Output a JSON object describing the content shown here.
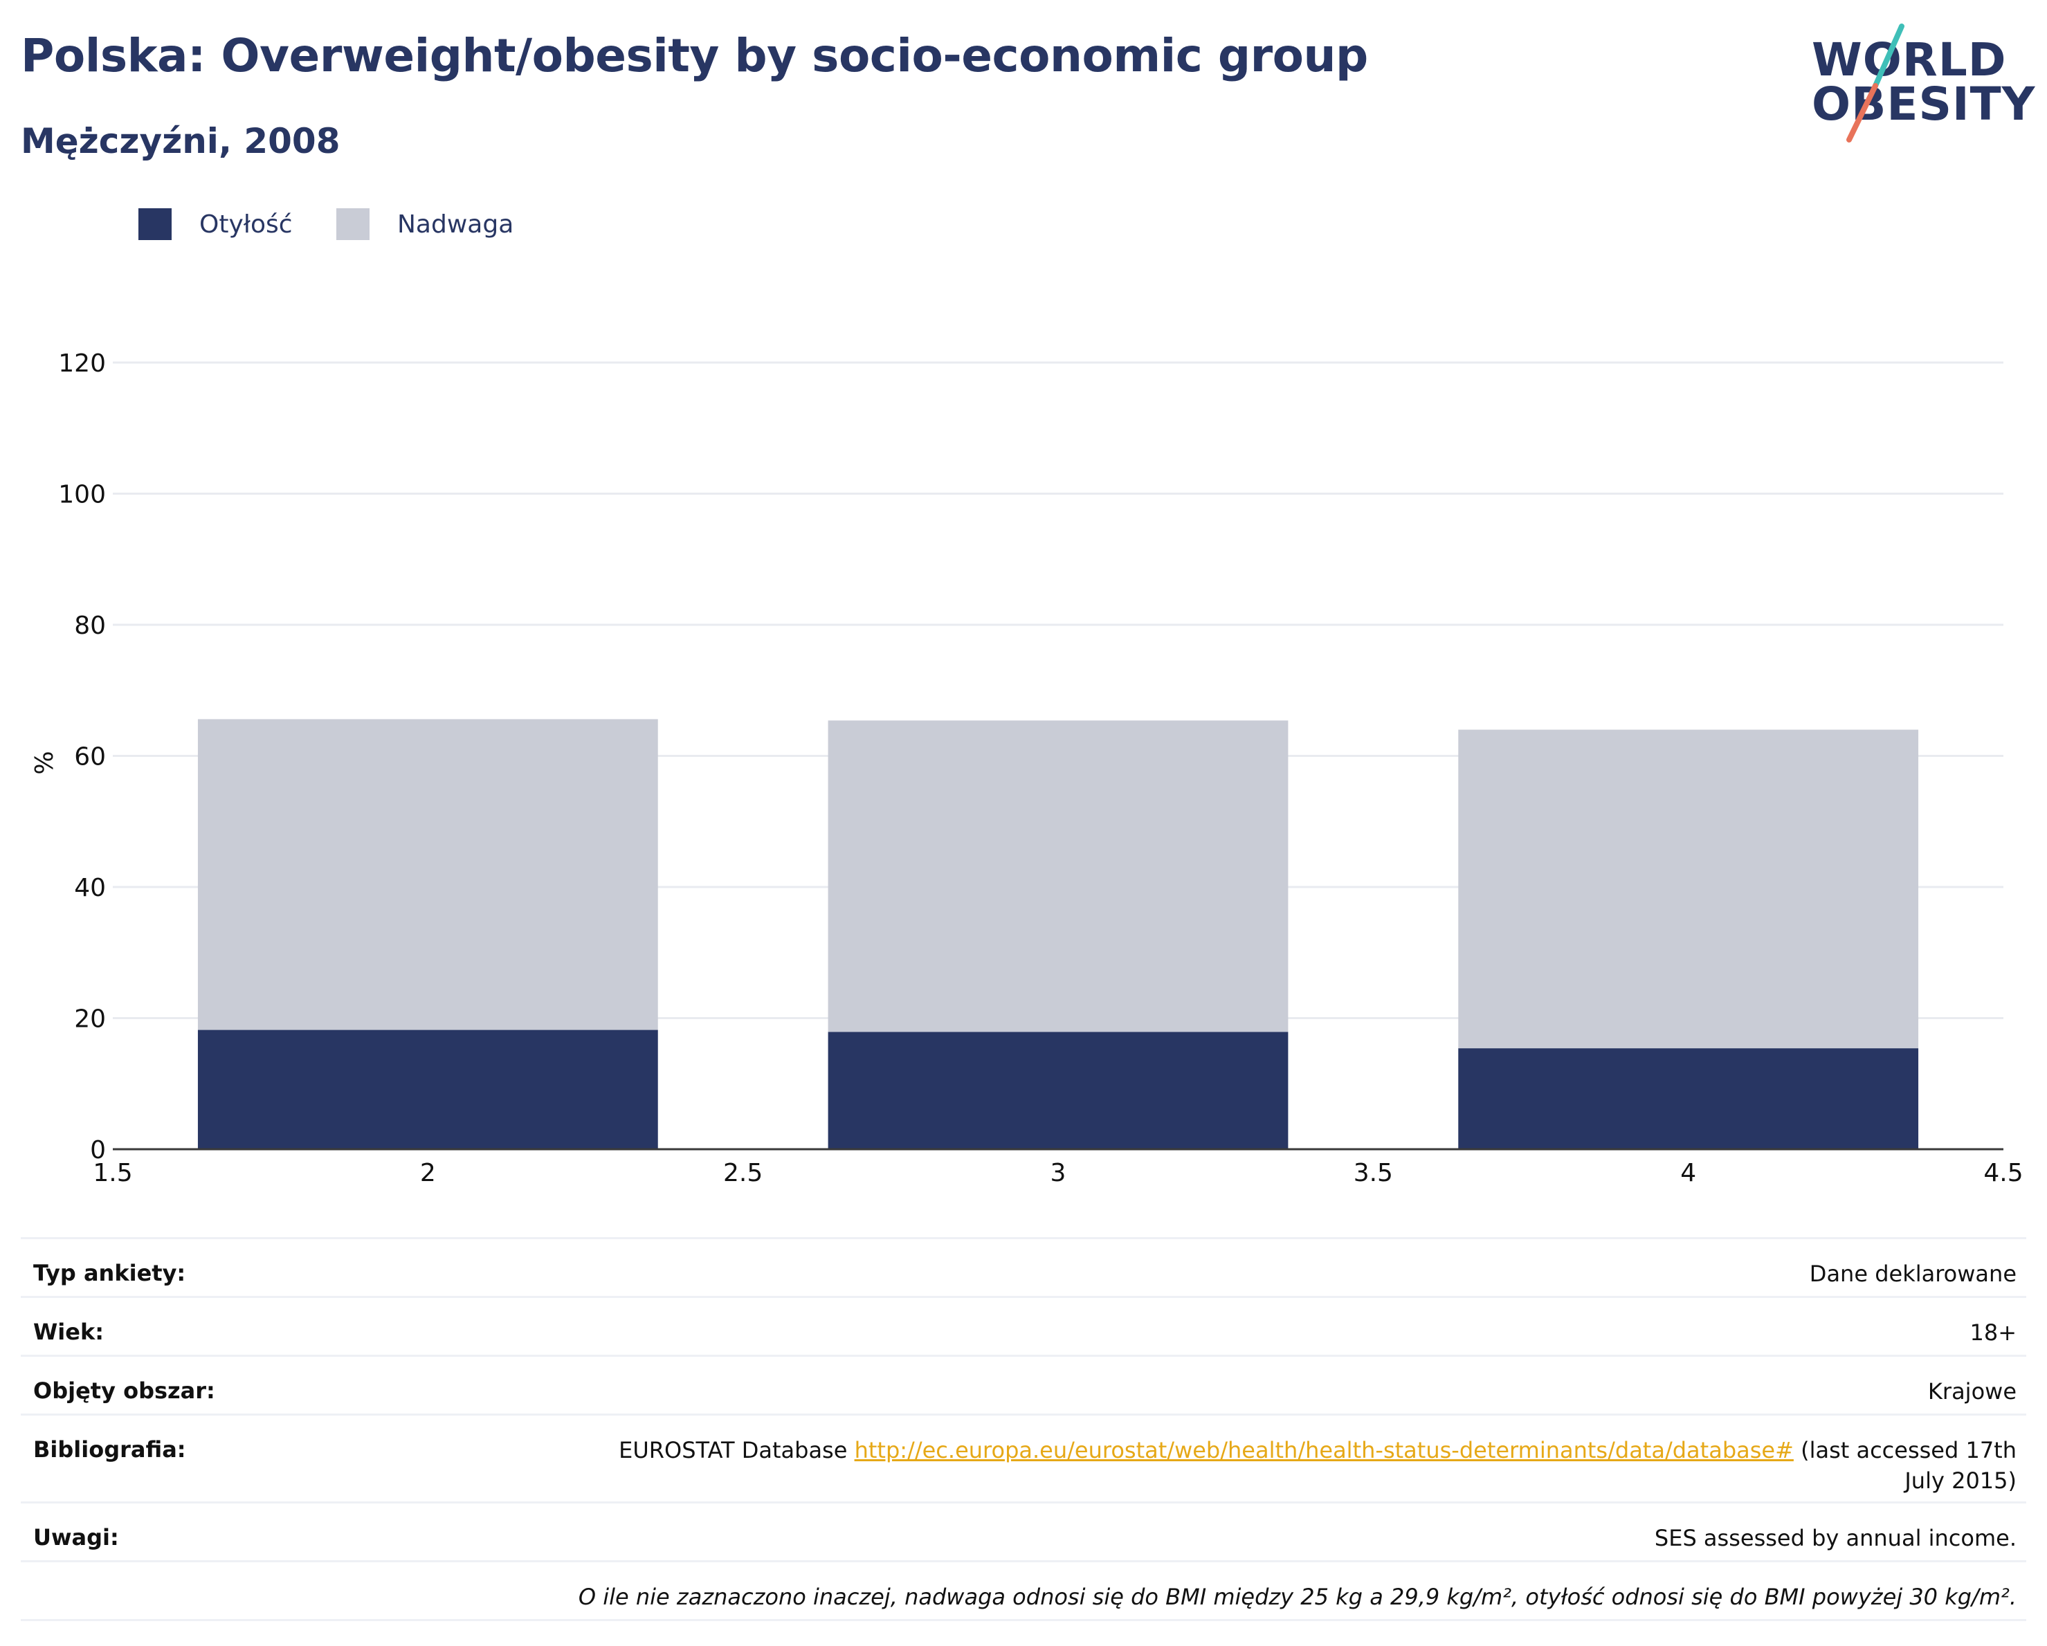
{
  "header": {
    "title": "Polska: Overweight/obesity by socio-economic group",
    "subtitle": "Mężczyźni, 2008"
  },
  "logo": {
    "line1": "WORLD",
    "line2": "OBESITY"
  },
  "legend": [
    {
      "label": "Otyłość",
      "color": "#283663"
    },
    {
      "label": "Nadwaga",
      "color": "#c9ccd6"
    }
  ],
  "chart_data": {
    "type": "bar",
    "stacked": true,
    "x": [
      2,
      3,
      4
    ],
    "xlim": [
      1.5,
      4.5
    ],
    "x_ticks": [
      "1.5",
      "2",
      "2.5",
      "3",
      "3.5",
      "4",
      "4.5"
    ],
    "ylim": [
      0,
      120
    ],
    "y_ticks": [
      "0",
      "20",
      "40",
      "60",
      "80",
      "100",
      "120"
    ],
    "ylabel": "%",
    "grid": true,
    "legend_position": "top-left",
    "series": [
      {
        "name": "Otyłość",
        "values": [
          18.2,
          17.9,
          15.4
        ],
        "color": "#283663"
      },
      {
        "name": "Nadwaga",
        "values": [
          47.4,
          47.5,
          48.6
        ],
        "color": "#c9ccd6"
      }
    ]
  },
  "info": {
    "survey_type_label": "Typ ankiety:",
    "survey_type_value": "Dane deklarowane",
    "age_label": "Wiek:",
    "age_value": "18+",
    "area_label": "Objęty obszar:",
    "area_value": "Krajowe",
    "bibliography_label": "Bibliografia:",
    "bibliography_prefix": "EUROSTAT Database ",
    "bibliography_link": "http://ec.europa.eu/eurostat/web/health/health-status-determinants/data/database#",
    "bibliography_suffix": " (last accessed 17th July 2015)",
    "notes_label": "Uwagi:",
    "notes_value": "SES assessed by annual income.",
    "footnote": "O ile nie zaznaczono inaczej, nadwaga odnosi się do BMI między 25 kg a 29,9 kg/m², otyłość odnosi się do BMI powyżej 30 kg/m²."
  }
}
